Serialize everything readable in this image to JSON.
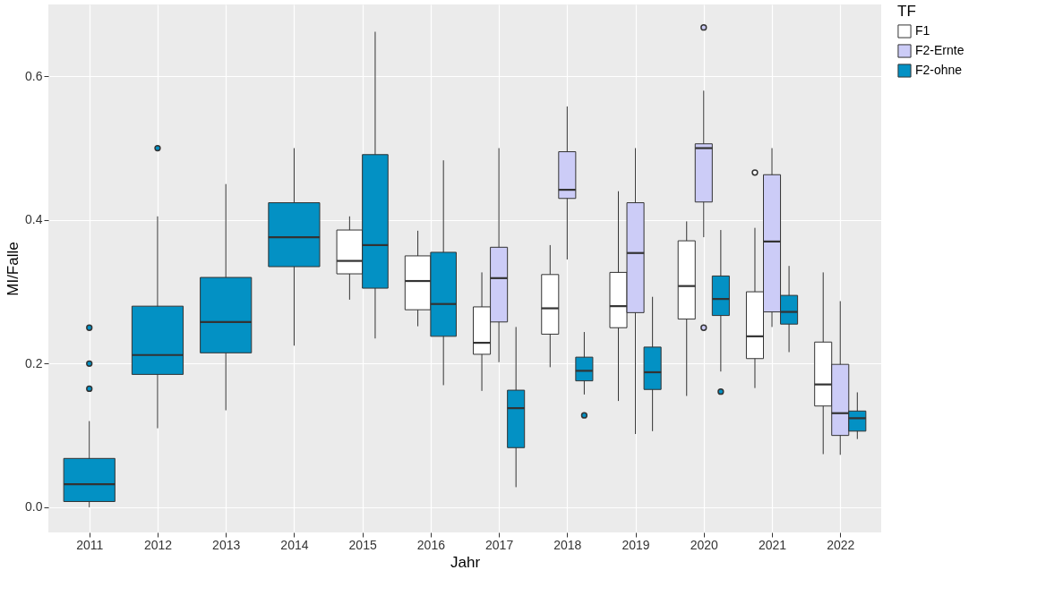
{
  "chart_data": {
    "type": "box",
    "xlabel": "Jahr",
    "ylabel": "MI/Falle",
    "legend_title": "TF",
    "legend": "right",
    "grid": true,
    "categories": [
      "2011",
      "2012",
      "2013",
      "2014",
      "2015",
      "2016",
      "2017",
      "2018",
      "2019",
      "2020",
      "2021",
      "2022"
    ],
    "ylim": [
      -0.035,
      0.7
    ],
    "yticks": [
      {
        "value": 0,
        "label": "0.0"
      },
      {
        "value": 0.2,
        "label": "0.2"
      },
      {
        "value": 0.4,
        "label": "0.4"
      },
      {
        "value": 0.6,
        "label": "0.6"
      }
    ],
    "series": [
      {
        "name": "F1",
        "color": "#ffffff",
        "boxes": [
          null,
          null,
          null,
          null,
          {
            "low": 0.289,
            "q1": 0.325,
            "median": 0.343,
            "q3": 0.386,
            "high": 0.405
          },
          {
            "low": 0.252,
            "q1": 0.275,
            "median": 0.315,
            "q3": 0.35,
            "high": 0.385
          },
          {
            "low": 0.162,
            "q1": 0.213,
            "median": 0.229,
            "q3": 0.279,
            "high": 0.327
          },
          {
            "low": 0.195,
            "q1": 0.241,
            "median": 0.277,
            "q3": 0.324,
            "high": 0.365
          },
          {
            "low": 0.148,
            "q1": 0.25,
            "median": 0.28,
            "q3": 0.327,
            "high": 0.44
          },
          {
            "low": 0.155,
            "q1": 0.262,
            "median": 0.308,
            "q3": 0.371,
            "high": 0.398
          },
          {
            "low": 0.166,
            "q1": 0.207,
            "median": 0.238,
            "q3": 0.3,
            "high": 0.389,
            "outliers": [
              0.466
            ]
          },
          {
            "low": 0.074,
            "q1": 0.141,
            "median": 0.171,
            "q3": 0.23,
            "high": 0.327
          }
        ]
      },
      {
        "name": "F2-Ernte",
        "color": "#ccccf7",
        "boxes": [
          null,
          null,
          null,
          null,
          null,
          null,
          {
            "low": 0.202,
            "q1": 0.258,
            "median": 0.319,
            "q3": 0.362,
            "high": 0.5
          },
          {
            "low": 0.345,
            "q1": 0.43,
            "median": 0.442,
            "q3": 0.495,
            "high": 0.558
          },
          {
            "low": 0.102,
            "q1": 0.271,
            "median": 0.354,
            "q3": 0.424,
            "high": 0.5
          },
          {
            "low": 0.376,
            "q1": 0.425,
            "median": 0.5,
            "q3": 0.506,
            "high": 0.58,
            "outliers": [
              0.668,
              0.25
            ]
          },
          {
            "low": 0.251,
            "q1": 0.272,
            "median": 0.37,
            "q3": 0.463,
            "high": 0.5
          },
          {
            "low": 0.073,
            "q1": 0.1,
            "median": 0.131,
            "q3": 0.199,
            "high": 0.287
          }
        ]
      },
      {
        "name": "F2-ohne",
        "color": "#0391c4",
        "boxes": [
          {
            "low": 0.0,
            "q1": 0.008,
            "median": 0.032,
            "q3": 0.068,
            "high": 0.12,
            "outliers": [
              0.25,
              0.2,
              0.165
            ]
          },
          {
            "low": 0.11,
            "q1": 0.185,
            "median": 0.212,
            "q3": 0.28,
            "high": 0.405,
            "outliers": [
              0.5
            ]
          },
          {
            "low": 0.135,
            "q1": 0.215,
            "median": 0.258,
            "q3": 0.32,
            "high": 0.45
          },
          {
            "low": 0.225,
            "q1": 0.335,
            "median": 0.376,
            "q3": 0.424,
            "high": 0.5
          },
          {
            "low": 0.235,
            "q1": 0.305,
            "median": 0.365,
            "q3": 0.491,
            "high": 0.662
          },
          {
            "low": 0.17,
            "q1": 0.238,
            "median": 0.283,
            "q3": 0.355,
            "high": 0.483
          },
          {
            "low": 0.028,
            "q1": 0.083,
            "median": 0.138,
            "q3": 0.163,
            "high": 0.251
          },
          {
            "low": 0.157,
            "q1": 0.176,
            "median": 0.19,
            "q3": 0.209,
            "high": 0.244,
            "outliers": [
              0.128
            ]
          },
          {
            "low": 0.106,
            "q1": 0.164,
            "median": 0.188,
            "q3": 0.223,
            "high": 0.293
          },
          {
            "low": 0.189,
            "q1": 0.267,
            "median": 0.29,
            "q3": 0.322,
            "high": 0.386,
            "outliers": [
              0.161
            ]
          },
          {
            "low": 0.216,
            "q1": 0.255,
            "median": 0.272,
            "q3": 0.295,
            "high": 0.336
          },
          {
            "low": 0.095,
            "q1": 0.106,
            "median": 0.124,
            "q3": 0.134,
            "high": 0.16
          }
        ]
      }
    ]
  }
}
